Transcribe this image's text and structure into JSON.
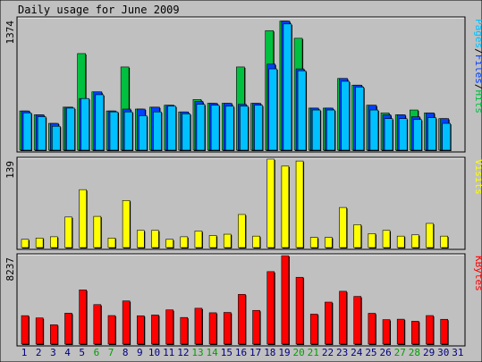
{
  "chart_data": {
    "type": "bar",
    "title": "Daily usage for June 2009",
    "categories": [
      "1",
      "2",
      "3",
      "4",
      "5",
      "6",
      "7",
      "8",
      "9",
      "10",
      "11",
      "12",
      "13",
      "14",
      "15",
      "16",
      "17",
      "18",
      "19",
      "20",
      "21",
      "22",
      "23",
      "24",
      "25",
      "26",
      "27",
      "28",
      "29",
      "30",
      "31"
    ],
    "weekend_days": [
      "6",
      "7",
      "13",
      "14",
      "20",
      "21",
      "27",
      "28"
    ],
    "colors": {
      "hits": "#00c040",
      "files": "#0040ff",
      "pages": "#00c0ff",
      "visits": "#ffff00",
      "kbytes": "#ff0000",
      "weekday_label": "#000080",
      "weekend_label": "#00a000",
      "background": "#c0c0c0",
      "panel": "#c0c0c0"
    },
    "panels": [
      {
        "name": "hits-files-pages",
        "ymax_label": "1374",
        "ymax": 1374,
        "legend": [
          {
            "text": "Pages",
            "color": "#00c0ff"
          },
          {
            "text": "/",
            "color": "#000000"
          },
          {
            "text": "Files",
            "color": "#0040ff"
          },
          {
            "text": "/",
            "color": "#000000"
          },
          {
            "text": "Hits",
            "color": "#00c040"
          }
        ],
        "series": [
          {
            "name": "Hits",
            "color": "#00c040",
            "values": [
              410,
              370,
              280,
              450,
              1010,
              610,
              410,
              870,
              430,
              450,
              470,
              400,
              530,
              490,
              490,
              870,
              490,
              1250,
              1350,
              1170,
              440,
              440,
              750,
              680,
              470,
              390,
              370,
              420,
              390,
              330,
              0
            ]
          },
          {
            "name": "Files",
            "color": "#0040ff",
            "values": [
              410,
              370,
              280,
              450,
              540,
              610,
              410,
              430,
              430,
              450,
              470,
              400,
              510,
              490,
              490,
              480,
              490,
              900,
              1350,
              850,
              440,
              440,
              750,
              680,
              470,
              370,
              370,
              350,
              390,
              330,
              0
            ]
          },
          {
            "name": "Pages",
            "color": "#00c0ff",
            "values": [
              390,
              350,
              250,
              440,
              540,
              580,
              400,
              400,
              360,
              400,
              460,
              380,
              480,
              470,
              460,
              460,
              470,
              850,
              1320,
              830,
              420,
              420,
              720,
              660,
              420,
              330,
              330,
              320,
              340,
              280,
              0
            ]
          }
        ]
      },
      {
        "name": "visits",
        "ymax_label": "139",
        "ymax": 139,
        "legend": [
          {
            "text": "Visits",
            "color": "#ffff00"
          }
        ],
        "series": [
          {
            "name": "Visits",
            "color": "#ffff00",
            "values": [
              13,
              15,
              17,
              48,
              91,
              49,
              15,
              74,
              27,
              27,
              13,
              17,
              26,
              19,
              21,
              52,
              18,
              139,
              128,
              136,
              16,
              16,
              63,
              36,
              22,
              27,
              18,
              20,
              38,
              18,
              0
            ]
          }
        ]
      },
      {
        "name": "kbytes",
        "ymax_label": "8237",
        "ymax": 8237,
        "legend": [
          {
            "text": "KBytes",
            "color": "#ff0000"
          }
        ],
        "series": [
          {
            "name": "KBytes",
            "color": "#ff0000",
            "values": [
              2650,
              2440,
              1800,
              2880,
              5050,
              3680,
              2660,
              4020,
              2640,
              2710,
              3190,
              2480,
              3340,
              2920,
              2950,
              4630,
              3140,
              6750,
              8237,
              6220,
              2790,
              3910,
              4920,
              4440,
              2870,
              2280,
              2320,
              2130,
              2660,
              2310,
              0
            ]
          }
        ]
      }
    ]
  }
}
